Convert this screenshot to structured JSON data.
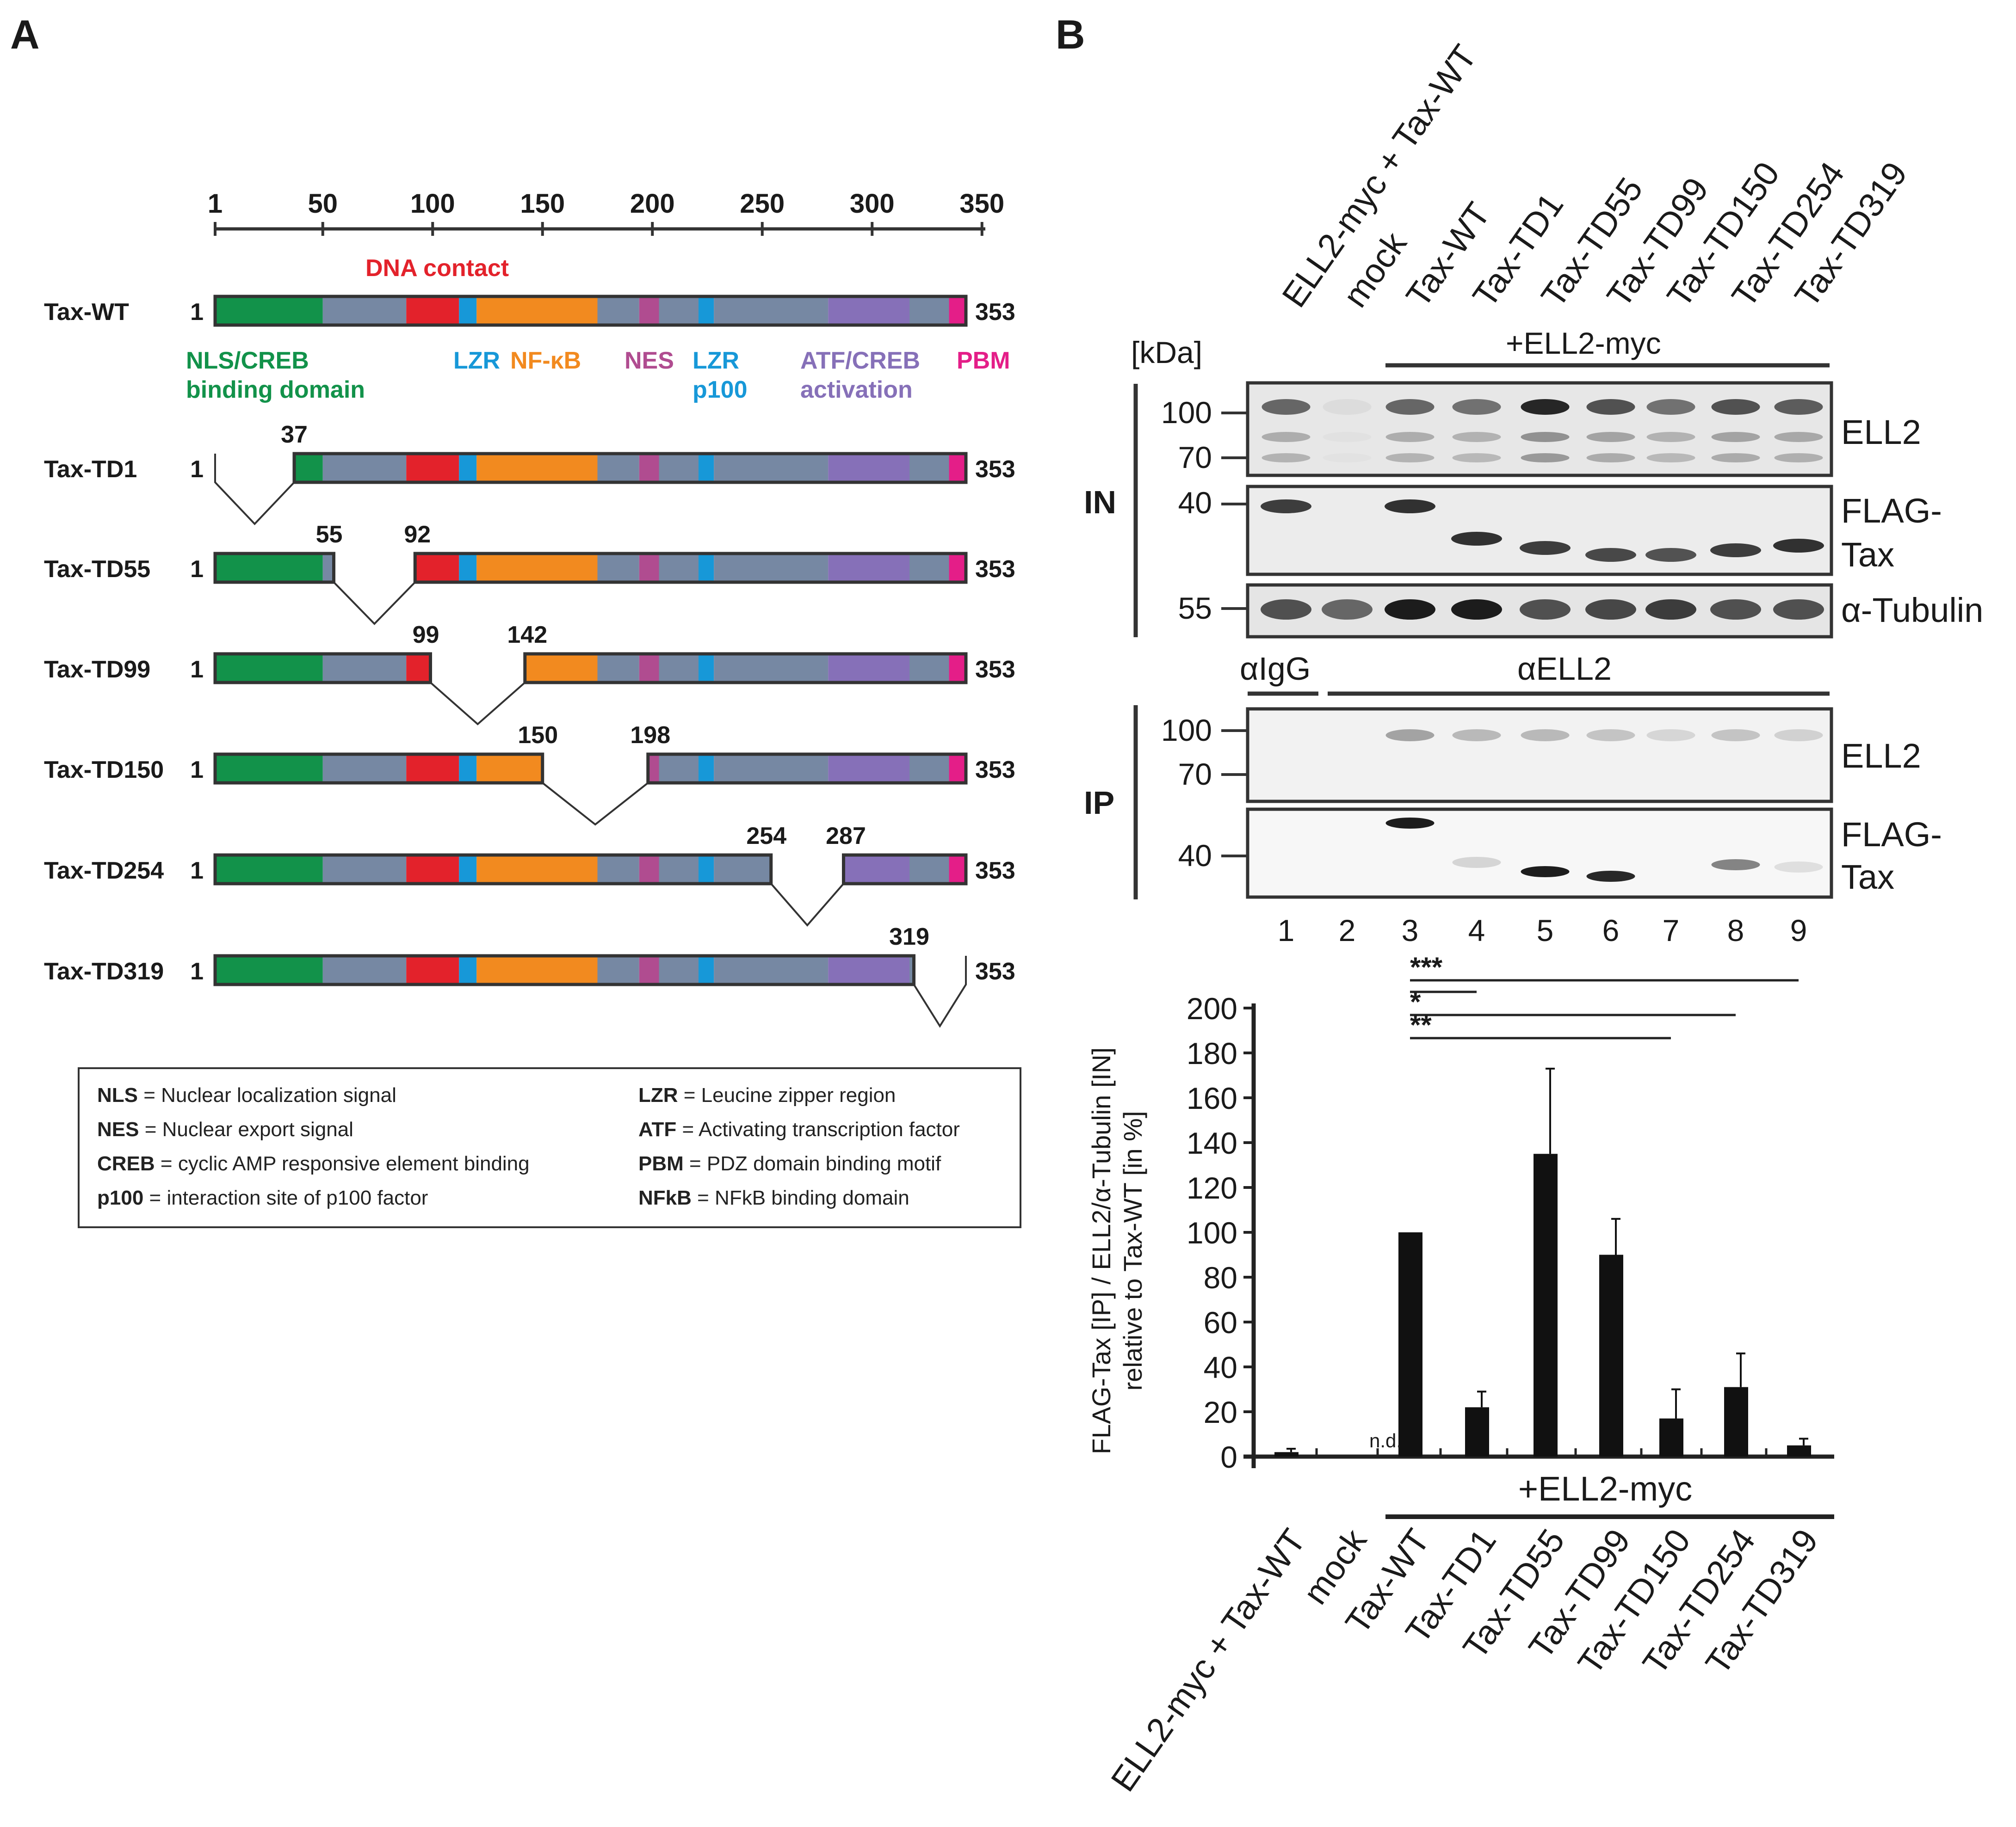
{
  "panels": {
    "a_label": "A",
    "b_label": "B"
  },
  "colors": {
    "nls": "#12924a",
    "gray": "#7688a3",
    "dna": "#e3222b",
    "lzr": "#1798d8",
    "nfkb": "#f28a1f",
    "nes": "#b04c90",
    "atf": "#8670b8",
    "pbm": "#e41e88",
    "outline": "#333333"
  },
  "domain_scale": {
    "ticks": [
      "1",
      "50",
      "100",
      "150",
      "200",
      "250",
      "300",
      "350"
    ]
  },
  "domain_labels": {
    "dna_contact": "DNA contact",
    "nls_creb_1": "NLS/CREB",
    "nls_creb_2": "binding domain",
    "lzr": "LZR",
    "nfkb": "NF-κB",
    "nes": "NES",
    "lzr_p100_1": "LZR",
    "lzr_p100_2": "p100",
    "atf_1": "ATF/CREB",
    "atf_2": "activation",
    "pbm": "PBM"
  },
  "constructs": [
    {
      "name": "Tax-WT",
      "start": "1",
      "end": "353"
    },
    {
      "name": "Tax-TD1",
      "start": "1",
      "end": "353",
      "cut_a": "37",
      "cut_b": ""
    },
    {
      "name": "Tax-TD55",
      "start": "1",
      "end": "353",
      "cut_a": "55",
      "cut_b": "92"
    },
    {
      "name": "Tax-TD99",
      "start": "1",
      "end": "353",
      "cut_a": "99",
      "cut_b": "142"
    },
    {
      "name": "Tax-TD150",
      "start": "1",
      "end": "353",
      "cut_a": "150",
      "cut_b": "198"
    },
    {
      "name": "Tax-TD254",
      "start": "1",
      "end": "353",
      "cut_a": "254",
      "cut_b": "287"
    },
    {
      "name": "Tax-TD319",
      "start": "1",
      "end": "353",
      "cut_a": "319",
      "cut_b": ""
    }
  ],
  "legend": [
    {
      "abbr": "NLS",
      "text": " = Nuclear localization signal"
    },
    {
      "abbr": "NES",
      "text": " = Nuclear export signal"
    },
    {
      "abbr": "CREB",
      "text": " = cyclic AMP responsive element binding"
    },
    {
      "abbr": "p100",
      "text": " = interaction site of p100 factor"
    },
    {
      "abbr": "LZR",
      "text": " = Leucine zipper region"
    },
    {
      "abbr": "ATF",
      "text": " = Activating transcription factor"
    },
    {
      "abbr": "PBM",
      "text": " = PDZ domain binding motif"
    },
    {
      "abbr": "NFkB",
      "text": " = NFkB binding domain"
    }
  ],
  "blot": {
    "lanes": [
      "ELL2-myc + Tax-WT",
      "mock",
      "Tax-WT",
      "Tax-TD1",
      "Tax-TD55",
      "Tax-TD99",
      "Tax-TD150",
      "Tax-TD254",
      "Tax-TD319"
    ],
    "kda_label": "[kDa]",
    "ell2_myc": "+ELL2-myc",
    "in_label": "IN",
    "ip_label": "IP",
    "markers_in_ell2": [
      "100",
      "70"
    ],
    "markers_in_flag": [
      "40"
    ],
    "markers_in_tub": [
      "55"
    ],
    "markers_ip_ell2": [
      "100",
      "70"
    ],
    "markers_ip_flag": [
      "40"
    ],
    "right_ell2": "ELL2",
    "right_flag_1": "FLAG-",
    "right_flag_2": "Tax",
    "right_tub": "α-Tubulin",
    "aigg": "αIgG",
    "aell2": "αELL2",
    "lane_numbers": [
      "1",
      "2",
      "3",
      "4",
      "5",
      "6",
      "7",
      "8",
      "9"
    ]
  },
  "chart_data": {
    "type": "bar",
    "categories": [
      "ELL2-myc + Tax-WT",
      "mock",
      "Tax-WT",
      "Tax-TD1",
      "Tax-TD55",
      "Tax-TD99",
      "Tax-TD150",
      "Tax-TD254",
      "Tax-TD319"
    ],
    "values": [
      2,
      0,
      100,
      22,
      135,
      90,
      17,
      31,
      5
    ],
    "errors": [
      1.5,
      0,
      0,
      7,
      38,
      16,
      13,
      15,
      3
    ],
    "ylabel_1": "FLAG-Tax [IP] / ELL2/α-Tubulin [IN]",
    "ylabel_2": "relative to Tax-WT [in %]",
    "ylim": [
      0,
      200
    ],
    "yticks": [
      "0",
      "20",
      "40",
      "60",
      "80",
      "100",
      "120",
      "140",
      "160",
      "180",
      "200"
    ],
    "nd_label": "n.d.",
    "group_label": "+ELL2-myc",
    "significance": [
      {
        "label": "***",
        "from": 3,
        "to": 9
      },
      {
        "label": "",
        "from": 3,
        "to": 4
      },
      {
        "label": "*",
        "from": 3,
        "to": 8
      },
      {
        "label": "**",
        "from": 3,
        "to": 7
      }
    ]
  }
}
